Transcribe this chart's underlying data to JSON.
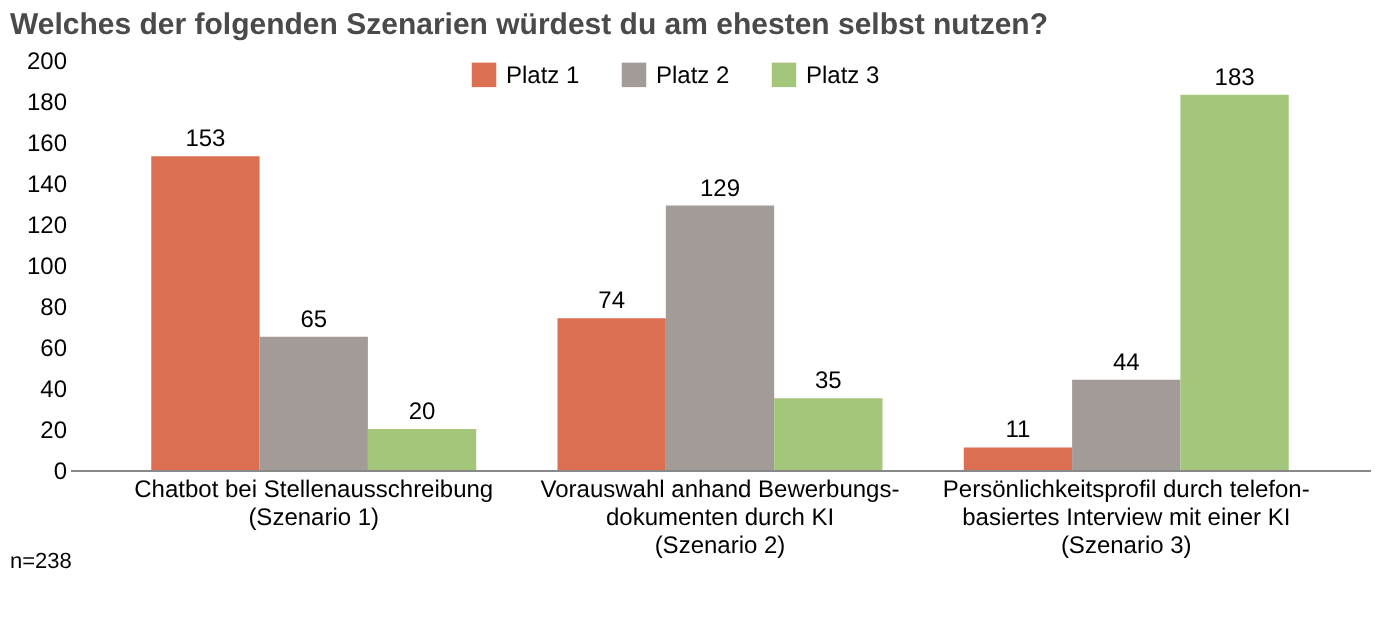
{
  "chart_data": {
    "type": "bar",
    "title": "Welches der folgenden Szenarien würdest du am ehesten selbst nutzen?",
    "categories": [
      "Chatbot bei Stellenausschreibung\n(Szenario 1)",
      "Vorauswahl anhand Bewerbungs-\ndokumenten durch KI\n(Szenario 2)",
      "Persönlichkeitsprofil durch telefon-\nbasiertes Interview mit einer KI\n(Szenario 3)"
    ],
    "series": [
      {
        "name": "Platz 1",
        "color": "#dc6e52",
        "values": [
          153,
          74,
          11
        ]
      },
      {
        "name": "Platz 2",
        "color": "#a39b97",
        "values": [
          65,
          129,
          44
        ]
      },
      {
        "name": "Platz 3",
        "color": "#a4c67a",
        "values": [
          20,
          35,
          183
        ]
      }
    ],
    "ylim": [
      0,
      200
    ],
    "yticks": [
      0,
      20,
      40,
      60,
      80,
      100,
      120,
      140,
      160,
      180,
      200
    ],
    "data_labels": true,
    "legend": "top",
    "grid": false,
    "annotations": [
      "n=238"
    ]
  }
}
